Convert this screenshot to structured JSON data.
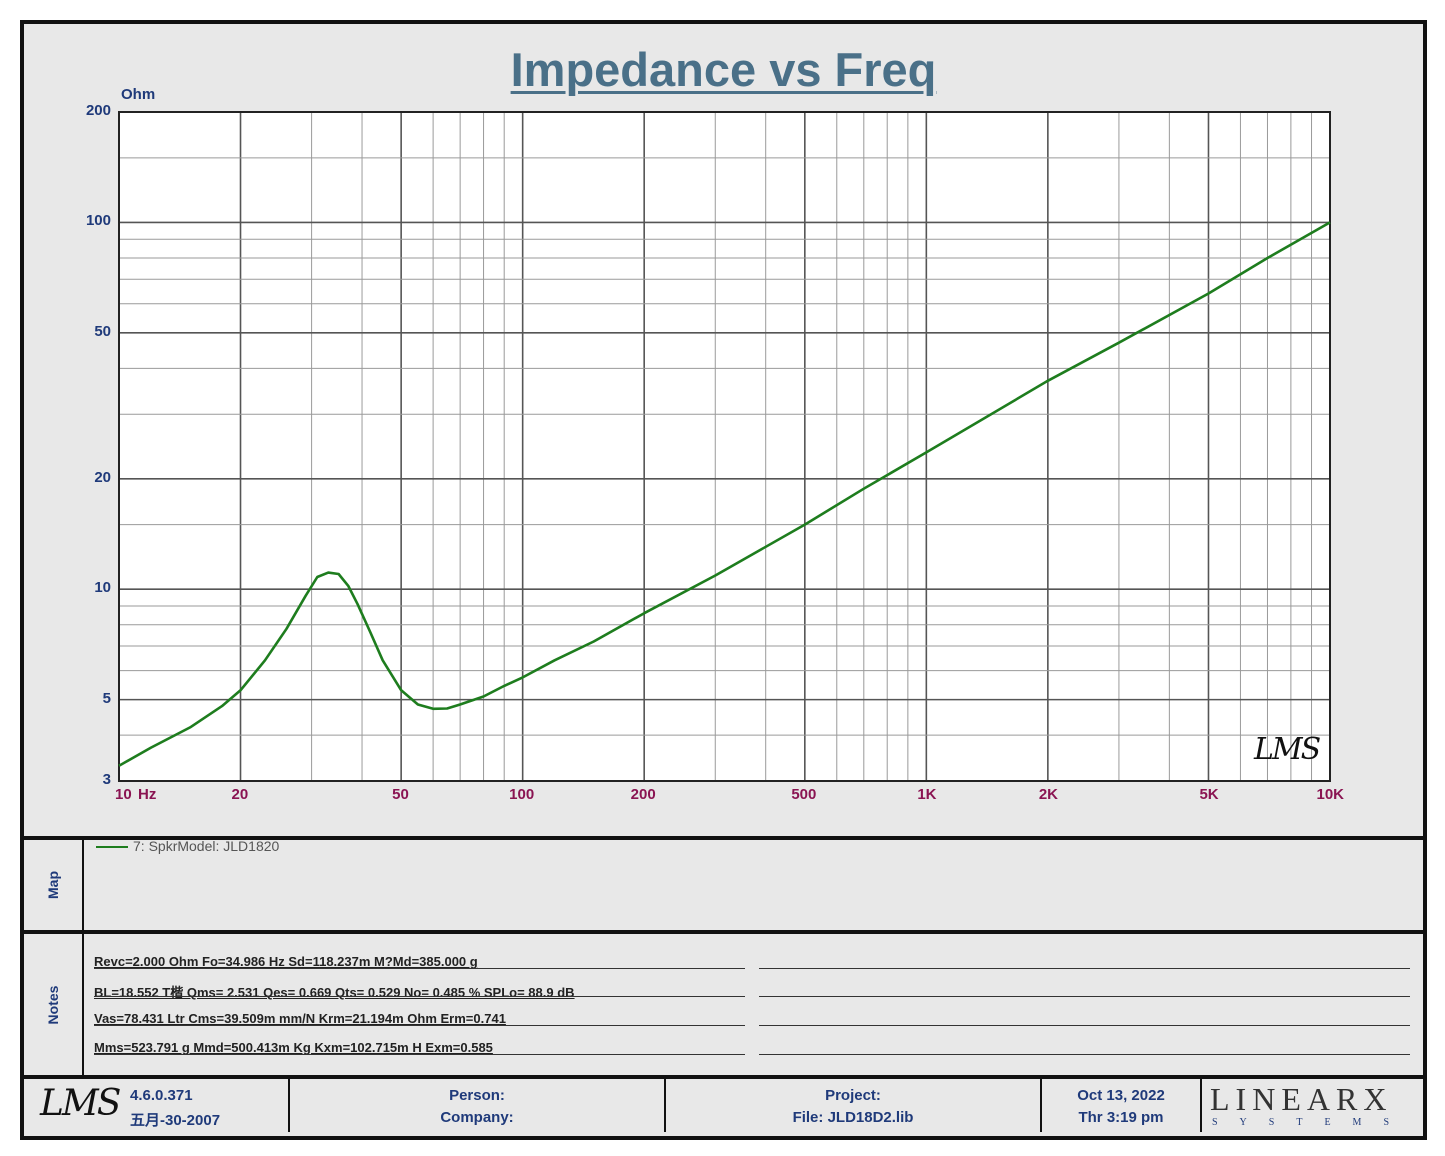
{
  "chart_data": {
    "type": "line",
    "title": "Impedance vs Freq",
    "ylabel": "Ohm",
    "xlabel": "Hz",
    "xscale": "log",
    "yscale": "log",
    "xlim": [
      10,
      10000
    ],
    "ylim": [
      3,
      200
    ],
    "x_ticks": [
      "10",
      "20",
      "50",
      "100",
      "200",
      "500",
      "1K",
      "2K",
      "5K",
      "10K"
    ],
    "y_ticks": [
      "200",
      "100",
      "50",
      "20",
      "10",
      "5",
      "3"
    ],
    "grid": true,
    "series": [
      {
        "name": "7: SpkrModel: JLD1820",
        "color": "#1e7d1e",
        "x": [
          10,
          12,
          15,
          18,
          20,
          23,
          26,
          29,
          31,
          33,
          35,
          37,
          39,
          42,
          45,
          50,
          55,
          60,
          65,
          70,
          80,
          90,
          100,
          120,
          150,
          200,
          300,
          500,
          700,
          1000,
          2000,
          3000,
          5000,
          7000,
          10000
        ],
        "y": [
          3.3,
          3.7,
          4.2,
          4.8,
          5.3,
          6.4,
          7.8,
          9.6,
          10.8,
          11.1,
          11.0,
          10.2,
          9.1,
          7.6,
          6.4,
          5.3,
          4.85,
          4.72,
          4.73,
          4.85,
          5.1,
          5.45,
          5.75,
          6.4,
          7.2,
          8.6,
          10.9,
          15.0,
          18.8,
          23.6,
          37.0,
          47.0,
          64.0,
          80.0,
          100.0
        ]
      }
    ]
  },
  "legend": {
    "entry": "7: SpkrModel: JLD1820"
  },
  "sections": {
    "map": "Map",
    "notes": "Notes"
  },
  "notes": [
    "Revc=2.000 Ohm  Fo=34.986 Hz  Sd=118.237m M?Md=385.000 g",
    "BL=18.552 T楷  Qms= 2.531  Qes= 0.669  Qts= 0.529  No= 0.485 %  SPLo= 88.9 dB",
    "Vas=78.431 Ltr  Cms=39.509m mm/N  Krm=21.194m Ohm  Erm=0.741",
    "Mms=523.791 g  Mmd=500.413m Kg  Kxm=102.715m H  Exm=0.585"
  ],
  "footer": {
    "lms_logo": "LMS",
    "version": "4.6.0.371",
    "date_built": "五月-30-2007",
    "person": "Person:",
    "company": "Company:",
    "project": "Project:",
    "file": "File: JLD18D2.lib",
    "date": "Oct 13, 2022",
    "time": "Thr  3:19 pm",
    "brand": "LINEARX",
    "brand_sub": "SYSTEMS"
  },
  "watermark": "LMS"
}
